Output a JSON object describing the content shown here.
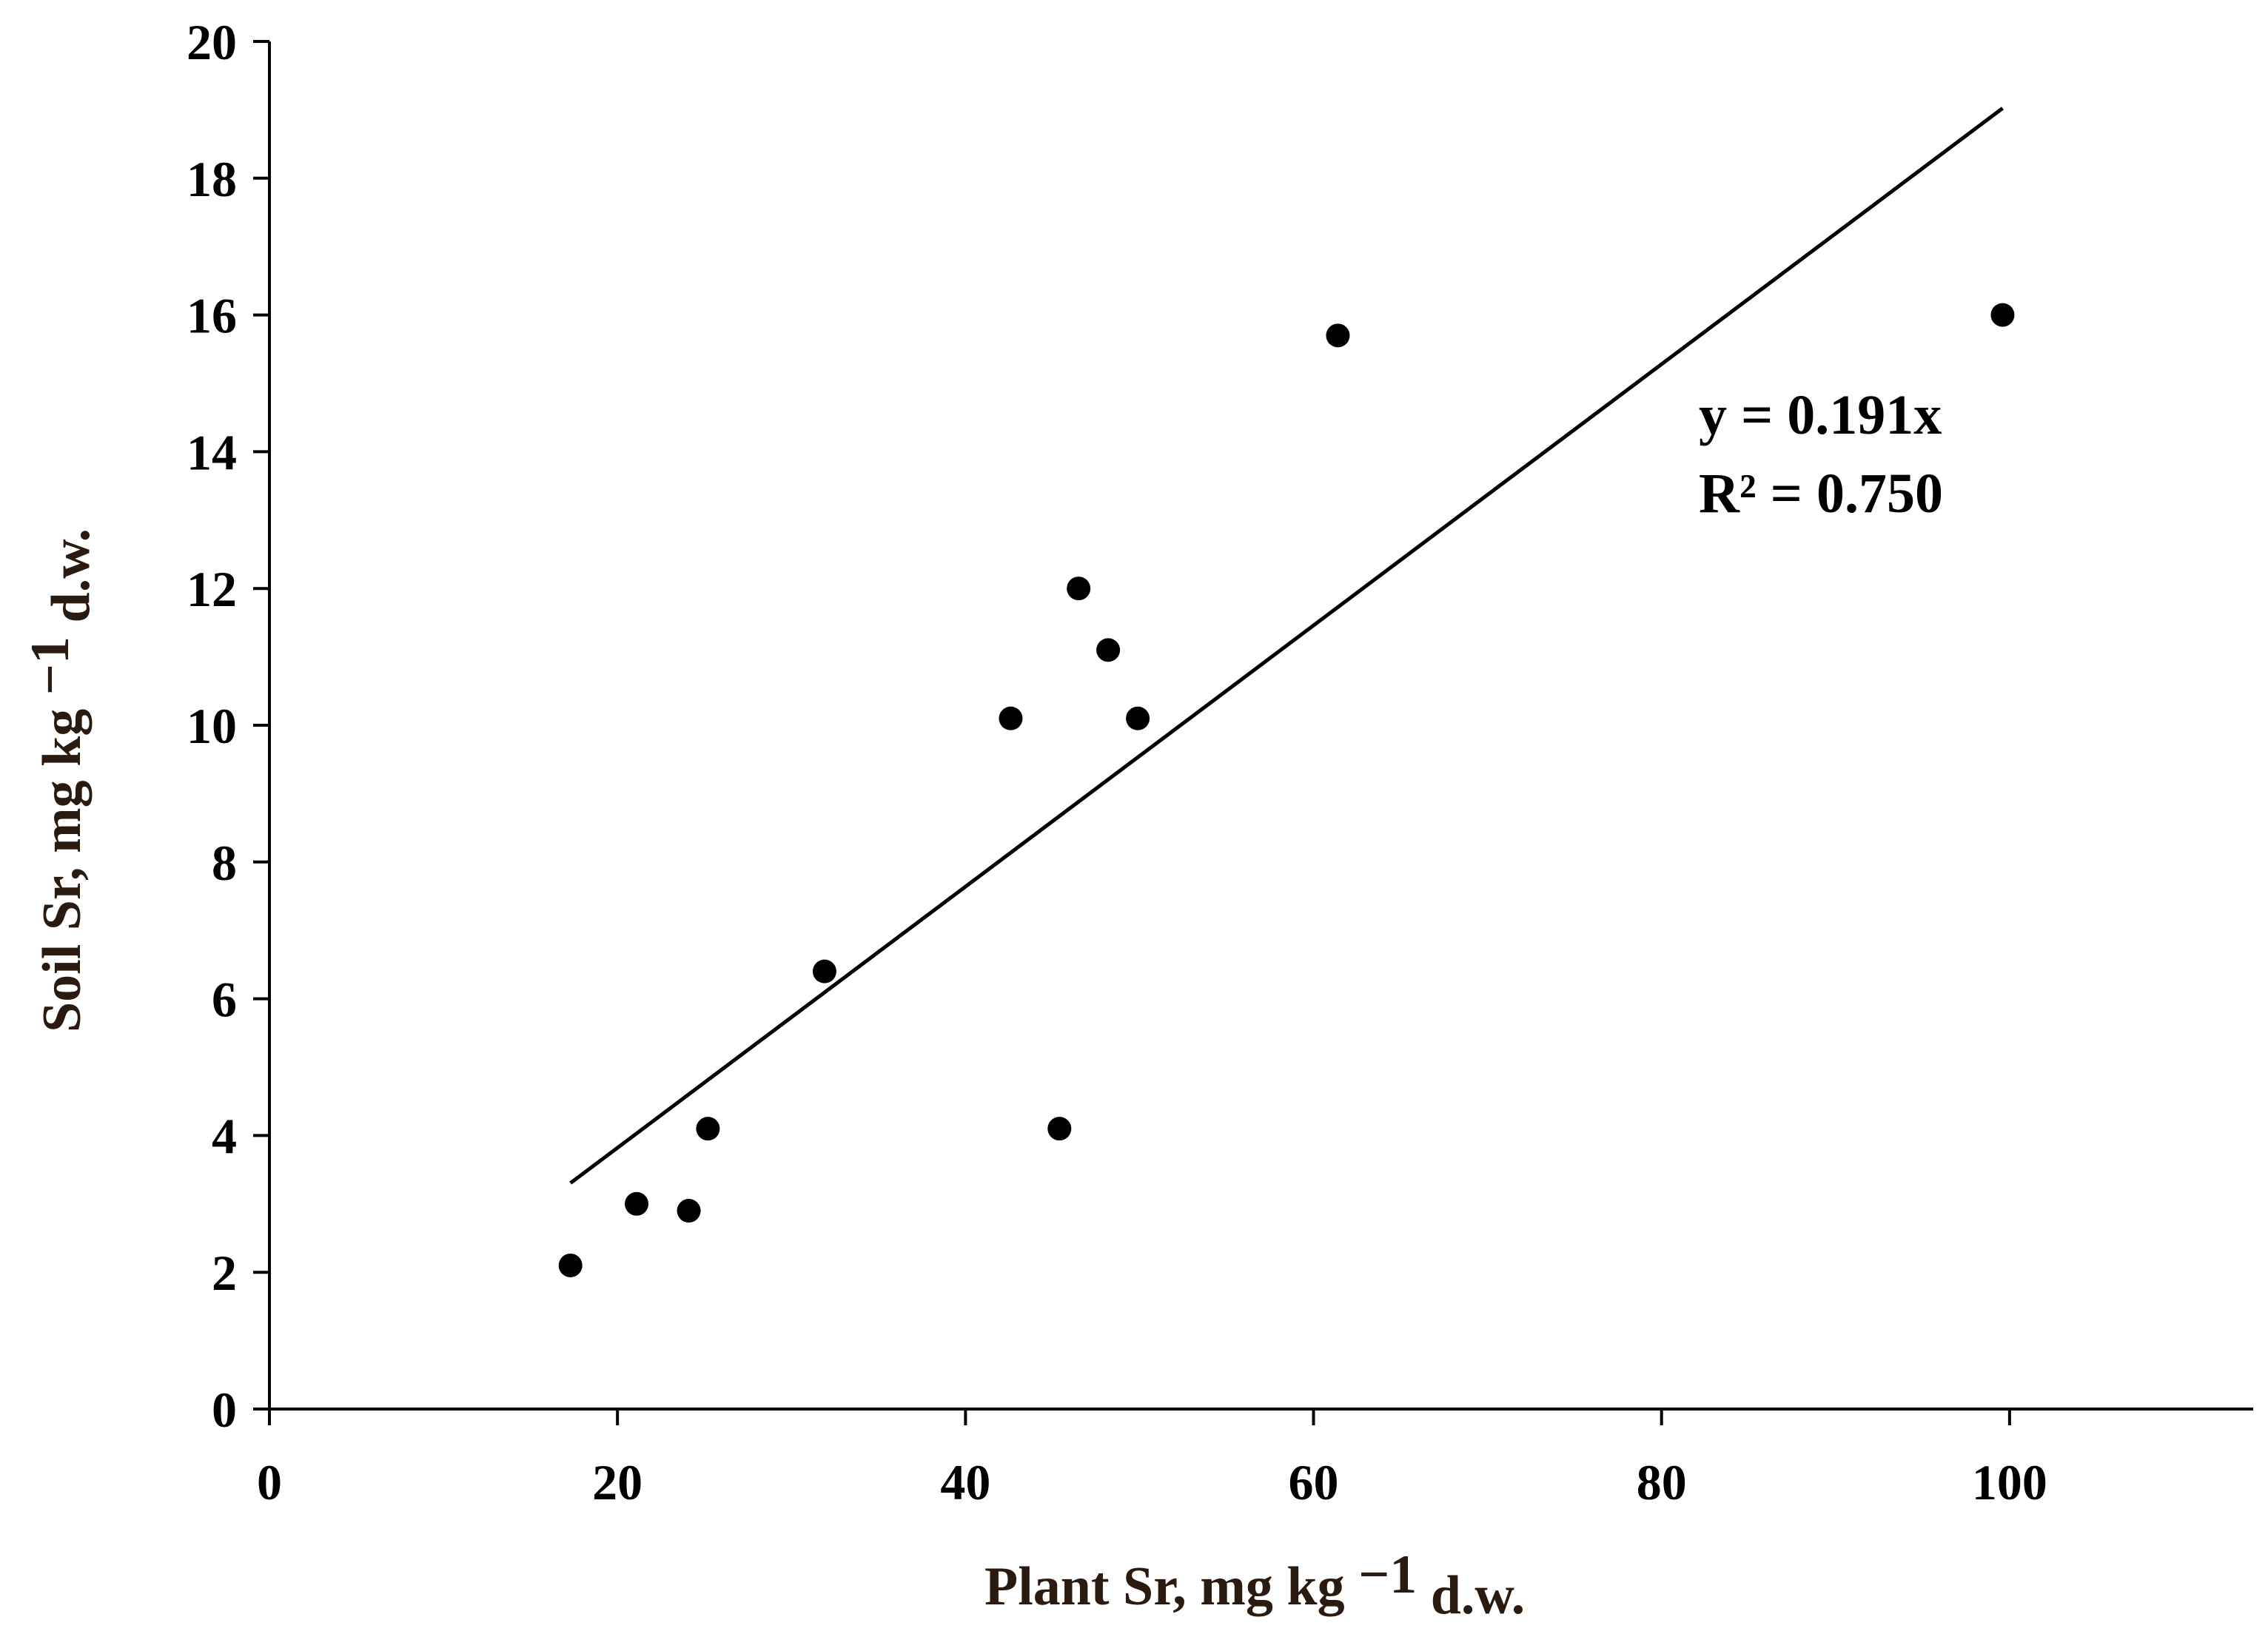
{
  "chart_data": {
    "type": "scatter",
    "title": "",
    "xlabel": {
      "main": "Plant Sr, mg kg ",
      "exponent": "−1",
      "unit": " d.w."
    },
    "ylabel": {
      "main": "Soil Sr,  mg kg ",
      "exponent": "−1",
      "unit": " d.w."
    },
    "xlim": [
      0,
      114
    ],
    "ylim": [
      0,
      20
    ],
    "x_ticks": [
      0,
      20,
      40,
      60,
      80,
      100
    ],
    "x_tick_labels": [
      "0",
      "20",
      "40",
      "60",
      "80",
      "100"
    ],
    "y_ticks": [
      0,
      2,
      4,
      6,
      8,
      10,
      12,
      14,
      16,
      18,
      20
    ],
    "y_tick_labels": [
      "0",
      "2",
      "4",
      "6",
      "8",
      "10",
      "12",
      "14",
      "16",
      "18",
      "20"
    ],
    "grid": false,
    "series": [
      {
        "points": [
          {
            "x": 17.3,
            "y": 2.1
          },
          {
            "x": 21.1,
            "y": 3.0
          },
          {
            "x": 24.1,
            "y": 2.9
          },
          {
            "x": 25.2,
            "y": 4.1
          },
          {
            "x": 31.9,
            "y": 6.4
          },
          {
            "x": 42.6,
            "y": 10.1
          },
          {
            "x": 45.4,
            "y": 4.1
          },
          {
            "x": 46.5,
            "y": 12.0
          },
          {
            "x": 48.2,
            "y": 11.1
          },
          {
            "x": 49.9,
            "y": 10.1
          },
          {
            "x": 61.4,
            "y": 15.7
          },
          {
            "x": 99.6,
            "y": 16.0
          }
        ]
      }
    ],
    "trendline": {
      "slope": 0.191,
      "intercept": 0,
      "x_start": 17.3,
      "x_end": 99.6,
      "equation_label": "y = 0.191x",
      "r2_label": "R² = 0.750"
    },
    "colors": {
      "points": "#000000",
      "trendline": "#000000",
      "axes": "#000000",
      "axis_titles": "#2a1a10"
    }
  }
}
